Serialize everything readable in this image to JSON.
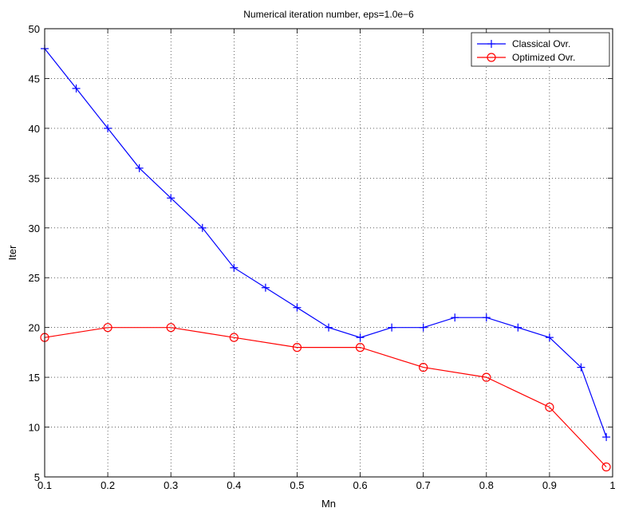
{
  "chart_data": {
    "type": "line",
    "title": "Numerical iteration number, eps=1.0e−6",
    "xlabel": "Mn",
    "ylabel": "Iter",
    "xlim": [
      0.1,
      1
    ],
    "ylim": [
      5,
      50
    ],
    "xticks": [
      "0.1",
      "0.2",
      "0.3",
      "0.4",
      "0.5",
      "0.6",
      "0.7",
      "0.8",
      "0.9",
      "1"
    ],
    "yticks": [
      "5",
      "10",
      "15",
      "20",
      "25",
      "30",
      "35",
      "40",
      "45",
      "50"
    ],
    "grid": true,
    "legend_position": "top-right",
    "series": [
      {
        "name": "Classical Ovr.",
        "color": "#0000ff",
        "marker": "plus",
        "x": [
          0.1,
          0.15,
          0.2,
          0.25,
          0.3,
          0.35,
          0.4,
          0.45,
          0.5,
          0.55,
          0.6,
          0.65,
          0.7,
          0.75,
          0.8,
          0.85,
          0.9,
          0.95,
          0.99
        ],
        "y": [
          48,
          44,
          40,
          36,
          33,
          30,
          26,
          24,
          22,
          20,
          19,
          20,
          20,
          21,
          21,
          20,
          19,
          16,
          9
        ]
      },
      {
        "name": "Optimized Ovr.",
        "color": "#ff0000",
        "marker": "circle",
        "x": [
          0.1,
          0.2,
          0.3,
          0.4,
          0.5,
          0.6,
          0.7,
          0.8,
          0.9,
          0.99
        ],
        "y": [
          19,
          20,
          20,
          19,
          18,
          18,
          16,
          15,
          12,
          6
        ]
      }
    ]
  }
}
